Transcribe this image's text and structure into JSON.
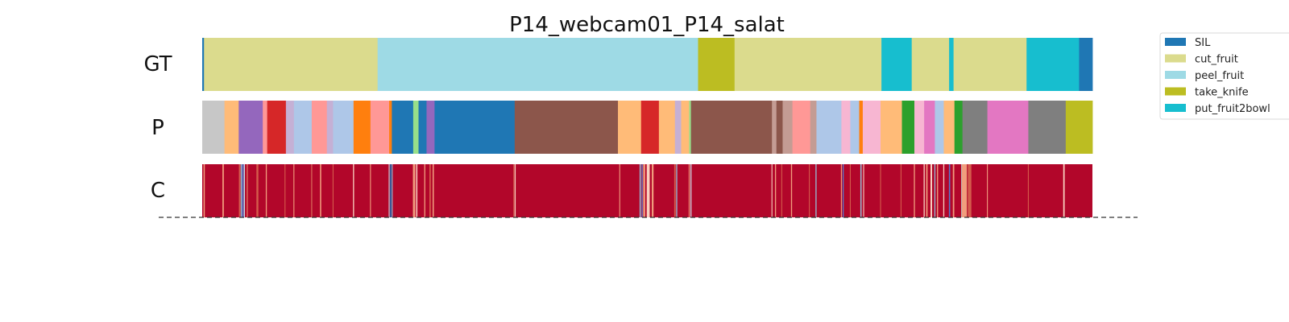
{
  "chart_data": {
    "type": "segmentation",
    "title": "P14_webcam01_P14_salat",
    "frames": 1000,
    "rows": [
      {
        "label": "GT",
        "segments": [
          {
            "start": 0,
            "end": 2,
            "color": "#1f77b4"
          },
          {
            "start": 2,
            "end": 197,
            "color": "#dbdb8d"
          },
          {
            "start": 197,
            "end": 557,
            "color": "#9edae5"
          },
          {
            "start": 557,
            "end": 598,
            "color": "#bcbd22"
          },
          {
            "start": 598,
            "end": 763,
            "color": "#dbdb8d"
          },
          {
            "start": 763,
            "end": 797,
            "color": "#17becf"
          },
          {
            "start": 797,
            "end": 839,
            "color": "#dbdb8d"
          },
          {
            "start": 839,
            "end": 844,
            "color": "#17becf"
          },
          {
            "start": 844,
            "end": 926,
            "color": "#dbdb8d"
          },
          {
            "start": 926,
            "end": 985,
            "color": "#17becf"
          },
          {
            "start": 985,
            "end": 1000,
            "color": "#1f77b4"
          }
        ]
      },
      {
        "label": "P",
        "segments": [
          {
            "start": 0,
            "end": 25,
            "color": "#c7c7c7"
          },
          {
            "start": 25,
            "end": 41,
            "color": "#ffbb78"
          },
          {
            "start": 41,
            "end": 68,
            "color": "#9467bd"
          },
          {
            "start": 68,
            "end": 73,
            "color": "#ff9896"
          },
          {
            "start": 73,
            "end": 94,
            "color": "#d62728"
          },
          {
            "start": 94,
            "end": 103,
            "color": "#c5b0d5"
          },
          {
            "start": 103,
            "end": 123,
            "color": "#aec7e8"
          },
          {
            "start": 123,
            "end": 140,
            "color": "#ff9896"
          },
          {
            "start": 140,
            "end": 147,
            "color": "#c5b0d5"
          },
          {
            "start": 147,
            "end": 170,
            "color": "#aec7e8"
          },
          {
            "start": 170,
            "end": 189,
            "color": "#ff7f0e"
          },
          {
            "start": 189,
            "end": 210,
            "color": "#ff9896"
          },
          {
            "start": 210,
            "end": 213,
            "color": "#ff7f0e"
          },
          {
            "start": 213,
            "end": 237,
            "color": "#1f77b4"
          },
          {
            "start": 237,
            "end": 243,
            "color": "#98df8a"
          },
          {
            "start": 243,
            "end": 252,
            "color": "#1f77b4"
          },
          {
            "start": 252,
            "end": 261,
            "color": "#9467bd"
          },
          {
            "start": 261,
            "end": 351,
            "color": "#1f77b4"
          },
          {
            "start": 351,
            "end": 467,
            "color": "#8c564b"
          },
          {
            "start": 467,
            "end": 493,
            "color": "#ffbb78"
          },
          {
            "start": 493,
            "end": 513,
            "color": "#d62728"
          },
          {
            "start": 513,
            "end": 531,
            "color": "#ffbb78"
          },
          {
            "start": 531,
            "end": 538,
            "color": "#c5b0d5"
          },
          {
            "start": 538,
            "end": 547,
            "color": "#ffbb78"
          },
          {
            "start": 547,
            "end": 549,
            "color": "#98df8a"
          },
          {
            "start": 549,
            "end": 640,
            "color": "#8c564b"
          },
          {
            "start": 640,
            "end": 645,
            "color": "#c49c94"
          },
          {
            "start": 645,
            "end": 652,
            "color": "#8c564b"
          },
          {
            "start": 652,
            "end": 663,
            "color": "#c49c94"
          },
          {
            "start": 663,
            "end": 683,
            "color": "#ff9896"
          },
          {
            "start": 683,
            "end": 690,
            "color": "#c49c94"
          },
          {
            "start": 690,
            "end": 718,
            "color": "#aec7e8"
          },
          {
            "start": 718,
            "end": 728,
            "color": "#f7b6d2"
          },
          {
            "start": 728,
            "end": 738,
            "color": "#aec7e8"
          },
          {
            "start": 738,
            "end": 742,
            "color": "#ff7f0e"
          },
          {
            "start": 742,
            "end": 762,
            "color": "#f7b6d2"
          },
          {
            "start": 762,
            "end": 786,
            "color": "#ffbb78"
          },
          {
            "start": 786,
            "end": 800,
            "color": "#2ca02c"
          },
          {
            "start": 800,
            "end": 811,
            "color": "#f7b6d2"
          },
          {
            "start": 811,
            "end": 823,
            "color": "#e377c2"
          },
          {
            "start": 823,
            "end": 833,
            "color": "#aec7e8"
          },
          {
            "start": 833,
            "end": 845,
            "color": "#ffbb78"
          },
          {
            "start": 845,
            "end": 854,
            "color": "#2ca02c"
          },
          {
            "start": 854,
            "end": 882,
            "color": "#7f7f7f"
          },
          {
            "start": 882,
            "end": 928,
            "color": "#e377c2"
          },
          {
            "start": 928,
            "end": 970,
            "color": "#7f7f7f"
          },
          {
            "start": 970,
            "end": 1000,
            "color": "#bcbd22"
          }
        ]
      },
      {
        "label": "C",
        "type": "heatmap",
        "base_color": "#b2062a",
        "features": [
          {
            "pos": 2.2,
            "w": 1.4,
            "color": "#f4a582"
          },
          {
            "pos": 23.5,
            "w": 1.6,
            "color": "#f4a582"
          },
          {
            "pos": 42,
            "w": 1.6,
            "color": "#d6604d"
          },
          {
            "pos": 43.8,
            "w": 1.2,
            "color": "#92c5de"
          },
          {
            "pos": 45.6,
            "w": 1.8,
            "color": "#4f7fd8"
          },
          {
            "pos": 47.4,
            "w": 1.2,
            "color": "#d1e5f0"
          },
          {
            "pos": 50.6,
            "w": 1.2,
            "color": "#e07b62"
          },
          {
            "pos": 62,
            "w": 2.2,
            "color": "#d6604d"
          },
          {
            "pos": 72,
            "w": 1.2,
            "color": "#f4a582"
          },
          {
            "pos": 93,
            "w": 1.0,
            "color": "#d6604d"
          },
          {
            "pos": 103,
            "w": 1.0,
            "color": "#f4a582"
          },
          {
            "pos": 123,
            "w": 1.0,
            "color": "#e07b62"
          },
          {
            "pos": 133,
            "w": 1.4,
            "color": "#f4a582"
          },
          {
            "pos": 147,
            "w": 1.0,
            "color": "#d6604d"
          },
          {
            "pos": 170,
            "w": 1.2,
            "color": "#fddbc7"
          },
          {
            "pos": 189,
            "w": 1.0,
            "color": "#f4a582"
          },
          {
            "pos": 210,
            "w": 1.0,
            "color": "#d1e5f0"
          },
          {
            "pos": 211.8,
            "w": 1.6,
            "color": "#2166ac"
          },
          {
            "pos": 213.5,
            "w": 1.0,
            "color": "#92c5de"
          },
          {
            "pos": 238,
            "w": 2.6,
            "color": "#f4a582"
          },
          {
            "pos": 241,
            "w": 1.4,
            "color": "#fddbc7"
          },
          {
            "pos": 250,
            "w": 1.2,
            "color": "#f4a582"
          },
          {
            "pos": 256,
            "w": 1.6,
            "color": "#d6604d"
          },
          {
            "pos": 259.5,
            "w": 1.4,
            "color": "#f4a582"
          },
          {
            "pos": 350,
            "w": 1.0,
            "color": "#d6604d"
          },
          {
            "pos": 351.5,
            "w": 1.2,
            "color": "#fddbc7"
          },
          {
            "pos": 469,
            "w": 1.0,
            "color": "#f4a582"
          },
          {
            "pos": 492,
            "w": 1.4,
            "color": "#92c5de"
          },
          {
            "pos": 494.2,
            "w": 1.2,
            "color": "#4f7fd8"
          },
          {
            "pos": 496.5,
            "w": 2.2,
            "color": "#f4a582"
          },
          {
            "pos": 501,
            "w": 3.4,
            "color": "#fddbc7"
          },
          {
            "pos": 506,
            "w": 2.0,
            "color": "#f4a582"
          },
          {
            "pos": 531,
            "w": 1.6,
            "color": "#d6604d"
          },
          {
            "pos": 533,
            "w": 1.2,
            "color": "#92c5de"
          },
          {
            "pos": 547,
            "w": 1.0,
            "color": "#f4a582"
          },
          {
            "pos": 549,
            "w": 1.2,
            "color": "#d1e5f0"
          },
          {
            "pos": 640,
            "w": 1.0,
            "color": "#fddbc7"
          },
          {
            "pos": 644,
            "w": 1.2,
            "color": "#f4a582"
          },
          {
            "pos": 651,
            "w": 1.0,
            "color": "#d6604d"
          },
          {
            "pos": 662,
            "w": 1.2,
            "color": "#f4a582"
          },
          {
            "pos": 682,
            "w": 1.0,
            "color": "#d6604d"
          },
          {
            "pos": 689.5,
            "w": 1.2,
            "color": "#92c5de"
          },
          {
            "pos": 718,
            "w": 1.0,
            "color": "#f4a582"
          },
          {
            "pos": 720,
            "w": 1.2,
            "color": "#4f7fd8"
          },
          {
            "pos": 728,
            "w": 1.0,
            "color": "#d6604d"
          },
          {
            "pos": 740,
            "w": 1.4,
            "color": "#92c5de"
          },
          {
            "pos": 743,
            "w": 1.0,
            "color": "#fddbc7"
          },
          {
            "pos": 762,
            "w": 1.0,
            "color": "#d6604d"
          },
          {
            "pos": 785,
            "w": 1.0,
            "color": "#d6604d"
          },
          {
            "pos": 800,
            "w": 1.2,
            "color": "#f4a582"
          },
          {
            "pos": 811,
            "w": 1.2,
            "color": "#fddbc7"
          },
          {
            "pos": 814,
            "w": 1.6,
            "color": "#f4a582"
          },
          {
            "pos": 819,
            "w": 1.8,
            "color": "#fddbc7"
          },
          {
            "pos": 823,
            "w": 1.2,
            "color": "#92c5de"
          },
          {
            "pos": 826,
            "w": 1.2,
            "color": "#f4a582"
          },
          {
            "pos": 833,
            "w": 1.2,
            "color": "#fddbc7"
          },
          {
            "pos": 839.5,
            "w": 1.4,
            "color": "#4f7fd8"
          },
          {
            "pos": 844,
            "w": 1.6,
            "color": "#f4a582"
          },
          {
            "pos": 853,
            "w": 1.0,
            "color": "#92c5de"
          },
          {
            "pos": 856,
            "w": 6.0,
            "color": "#f4a582"
          },
          {
            "pos": 862,
            "w": 4.0,
            "color": "#d6604d"
          },
          {
            "pos": 882,
            "w": 1.0,
            "color": "#f4a582"
          },
          {
            "pos": 928,
            "w": 1.0,
            "color": "#d6604d"
          },
          {
            "pos": 968,
            "w": 1.6,
            "color": "#fddbc7"
          }
        ]
      }
    ],
    "legend": {
      "position": "top-right",
      "entries": [
        {
          "label": "SIL",
          "color": "#1f77b4"
        },
        {
          "label": "cut_fruit",
          "color": "#dbdb8d"
        },
        {
          "label": "peel_fruit",
          "color": "#9edae5"
        },
        {
          "label": "take_knife",
          "color": "#bcbd22"
        },
        {
          "label": "put_fruit2bowl",
          "color": "#17becf"
        }
      ]
    },
    "baseline": "dashed"
  }
}
